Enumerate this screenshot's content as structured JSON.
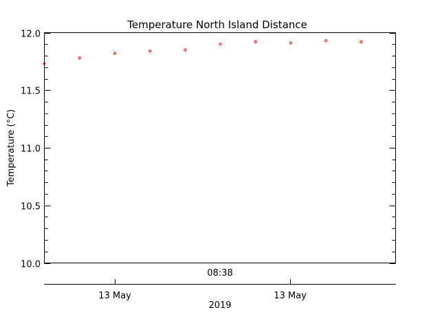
{
  "chart_data": {
    "type": "scatter",
    "title": "Temperature North Island Distance",
    "ylabel": "Temperature (°C)",
    "ylim": [
      10.0,
      12.0
    ],
    "y_ticks": [
      "10.0",
      "10.5",
      "11.0",
      "11.5",
      "12.0"
    ],
    "x_time_label": "08:38",
    "x_date_ticks": [
      "13 May",
      "13 May"
    ],
    "x_year_label": "2019",
    "marker_color": "#ff0000",
    "series": [
      {
        "points": [
          {
            "x": 0,
            "y": 11.73
          },
          {
            "x": 1,
            "y": 11.78
          },
          {
            "x": 2,
            "y": 11.82
          },
          {
            "x": 3,
            "y": 11.84
          },
          {
            "x": 4,
            "y": 11.85
          },
          {
            "x": 5,
            "y": 11.9
          },
          {
            "x": 6,
            "y": 11.92
          },
          {
            "x": 7,
            "y": 11.91
          },
          {
            "x": 8,
            "y": 11.93
          },
          {
            "x": 9,
            "y": 11.92
          }
        ]
      }
    ]
  }
}
